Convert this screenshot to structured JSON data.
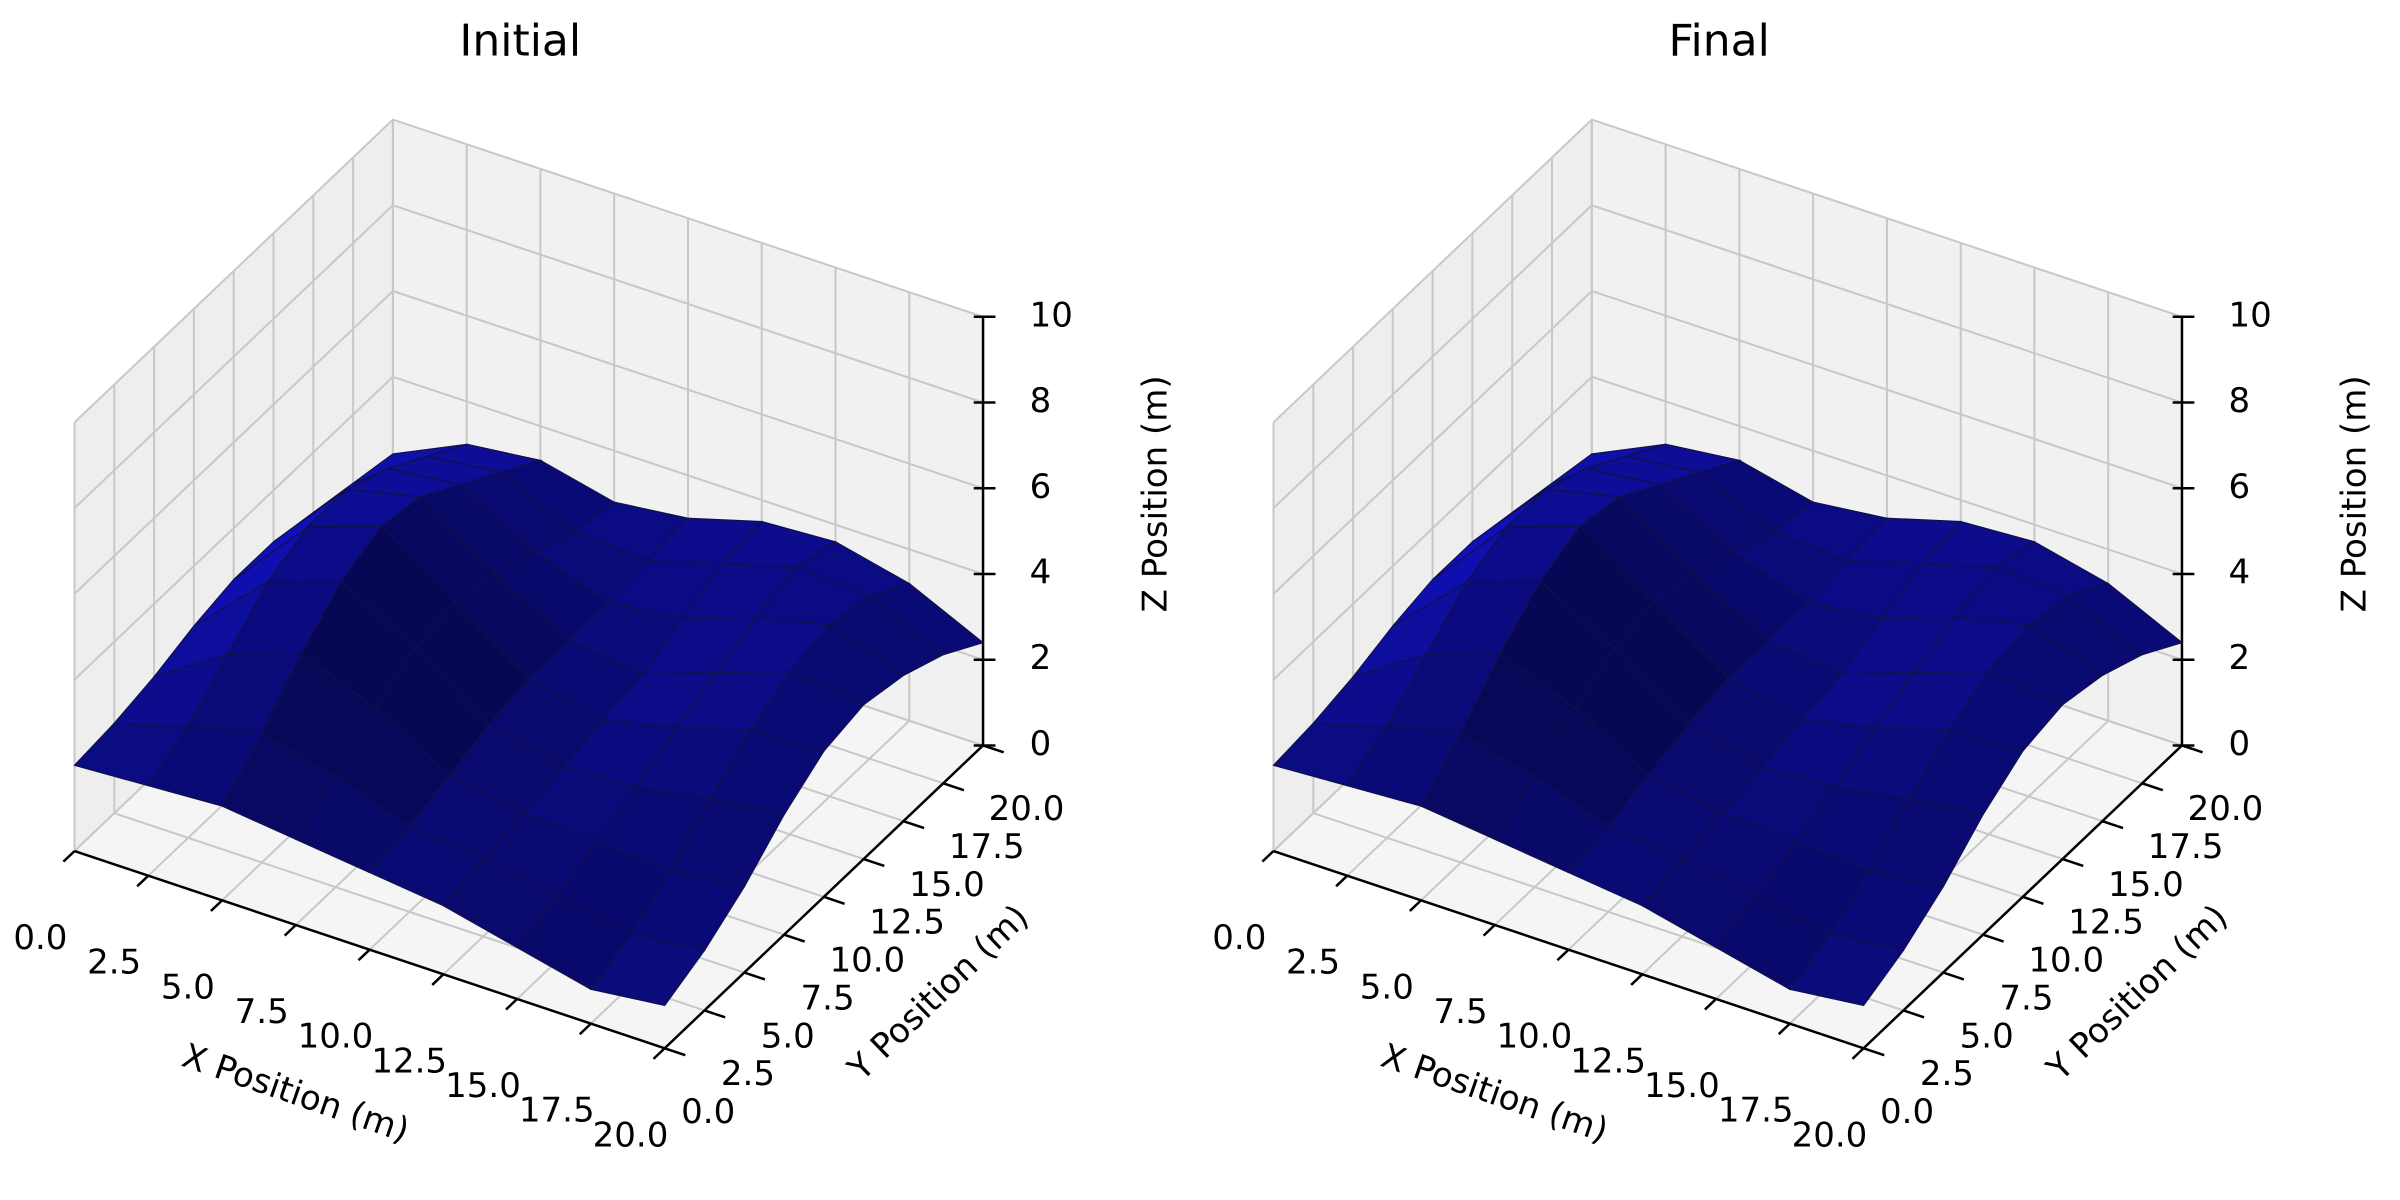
{
  "chart_data": [
    {
      "type": "surface",
      "title": "Initial",
      "x_label": "X Position (m)",
      "y_label": "Y Position (m)",
      "z_label": "Z Position (m)",
      "x": [
        0,
        2.5,
        5,
        7.5,
        10,
        12.5,
        15,
        17.5,
        20
      ],
      "y": [
        0,
        2.5,
        5,
        7.5,
        10,
        12.5,
        15,
        17.5,
        20
      ],
      "z": [
        [
          2.0,
          2.1,
          2.2,
          2.0,
          1.8,
          1.6,
          1.2,
          0.8,
          1.0
        ],
        [
          2.1,
          2.6,
          3.0,
          2.6,
          2.0,
          1.8,
          1.5,
          1.2,
          1.4
        ],
        [
          2.3,
          3.4,
          4.0,
          3.3,
          2.3,
          2.0,
          1.9,
          1.8,
          2.0
        ],
        [
          2.6,
          4.2,
          4.8,
          3.8,
          2.6,
          2.2,
          2.3,
          2.6,
          2.8
        ],
        [
          2.8,
          4.6,
          5.2,
          4.0,
          2.8,
          2.4,
          2.8,
          3.3,
          3.4
        ],
        [
          2.8,
          4.6,
          5.0,
          3.8,
          2.8,
          2.6,
          3.2,
          3.8,
          3.6
        ],
        [
          2.6,
          4.2,
          4.4,
          3.4,
          2.8,
          3.0,
          3.6,
          4.0,
          3.4
        ],
        [
          2.4,
          3.6,
          3.8,
          3.0,
          2.9,
          3.4,
          3.9,
          3.8,
          3.0
        ],
        [
          2.2,
          3.0,
          3.2,
          2.8,
          3.0,
          3.5,
          3.6,
          3.2,
          2.4
        ]
      ],
      "color": "#0b0b80",
      "xlim": [
        0,
        20
      ],
      "ylim": [
        0,
        20
      ],
      "zlim": [
        0,
        10
      ],
      "xticks": [
        {
          "value": 0,
          "label": "0.0"
        },
        2.5,
        {
          "value": 5,
          "label": "5.0"
        },
        7.5,
        {
          "value": 10,
          "label": "10.0"
        },
        12.5,
        {
          "value": 15,
          "label": "15.0"
        },
        17.5,
        {
          "value": 20,
          "label": "20.0"
        }
      ],
      "yticks": [
        {
          "value": 0,
          "label": "0.0"
        },
        2.5,
        {
          "value": 5,
          "label": "5.0"
        },
        7.5,
        {
          "value": 10,
          "label": "10.0"
        },
        12.5,
        {
          "value": 15,
          "label": "15.0"
        },
        17.5,
        {
          "value": 20,
          "label": "20.0"
        }
      ],
      "zticks": [
        0,
        2,
        4,
        6,
        8,
        10
      ],
      "grid": true
    },
    {
      "type": "surface",
      "title": "Final",
      "x_label": "X Position (m)",
      "y_label": "Y Position (m)",
      "z_label": "Z Position (m)",
      "x": [
        0,
        2.5,
        5,
        7.5,
        10,
        12.5,
        15,
        17.5,
        20
      ],
      "y": [
        0,
        2.5,
        5,
        7.5,
        10,
        12.5,
        15,
        17.5,
        20
      ],
      "z": [
        [
          2.0,
          2.1,
          2.2,
          2.0,
          1.8,
          1.6,
          1.2,
          0.8,
          1.0
        ],
        [
          2.1,
          2.6,
          3.0,
          2.6,
          2.0,
          1.8,
          1.5,
          1.2,
          1.4
        ],
        [
          2.3,
          3.4,
          4.0,
          3.3,
          2.3,
          2.0,
          1.9,
          1.8,
          2.0
        ],
        [
          2.6,
          4.2,
          4.8,
          3.8,
          2.6,
          2.2,
          2.3,
          2.6,
          2.8
        ],
        [
          2.8,
          4.6,
          5.2,
          4.0,
          2.8,
          2.4,
          2.8,
          3.3,
          3.4
        ],
        [
          2.8,
          4.6,
          5.0,
          3.8,
          2.8,
          2.6,
          3.2,
          3.8,
          3.6
        ],
        [
          2.6,
          4.2,
          4.4,
          3.4,
          2.8,
          3.0,
          3.6,
          4.0,
          3.4
        ],
        [
          2.4,
          3.6,
          3.8,
          3.0,
          2.9,
          3.4,
          3.9,
          3.8,
          3.0
        ],
        [
          2.2,
          3.0,
          3.2,
          2.8,
          3.0,
          3.5,
          3.6,
          3.2,
          2.4
        ]
      ],
      "color": "#0b0b80",
      "xlim": [
        0,
        20
      ],
      "ylim": [
        0,
        20
      ],
      "zlim": [
        0,
        10
      ],
      "xticks": [
        {
          "value": 0,
          "label": "0.0"
        },
        2.5,
        {
          "value": 5,
          "label": "5.0"
        },
        7.5,
        {
          "value": 10,
          "label": "10.0"
        },
        12.5,
        {
          "value": 15,
          "label": "15.0"
        },
        17.5,
        {
          "value": 20,
          "label": "20.0"
        }
      ],
      "yticks": [
        {
          "value": 0,
          "label": "0.0"
        },
        2.5,
        {
          "value": 5,
          "label": "5.0"
        },
        7.5,
        {
          "value": 10,
          "label": "10.0"
        },
        12.5,
        {
          "value": 15,
          "label": "15.0"
        },
        17.5,
        {
          "value": 20,
          "label": "20.0"
        }
      ],
      "zticks": [
        0,
        2,
        4,
        6,
        8,
        10
      ],
      "grid": true
    }
  ]
}
